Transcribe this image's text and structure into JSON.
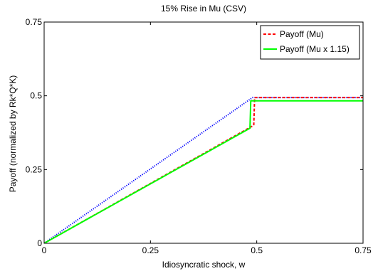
{
  "chart_data": {
    "type": "line",
    "title": "15% Rise in Mu (CSV)",
    "xlabel": "Idiosyncratic shock, w",
    "ylabel": "Payoff (normalized by Rk*Q*K)",
    "xlim": [
      0,
      0.75
    ],
    "ylim": [
      0,
      0.75
    ],
    "x_ticks": [
      0,
      0.25,
      0.5,
      0.75
    ],
    "x_tick_labels": [
      "0",
      "0.25",
      "0.5",
      "0.75"
    ],
    "y_ticks": [
      0,
      0.25,
      0.5,
      0.75
    ],
    "y_tick_labels": [
      "0",
      "0.25",
      "0.5",
      "0.75"
    ],
    "grid": false,
    "legend_position": "top-right",
    "series": [
      {
        "name": "",
        "color": "#0000ff",
        "dash": "dotted",
        "x": [
          0,
          0.49,
          0.75
        ],
        "y": [
          0,
          0.494,
          0.494
        ]
      },
      {
        "name": "Payoff (Mu)",
        "color": "#ff0000",
        "dash": "dashed",
        "x": [
          0,
          0.493,
          0.495,
          0.75
        ],
        "y": [
          0,
          0.4,
          0.494,
          0.494
        ]
      },
      {
        "name": "Payoff (Mu x 1.15)",
        "color": "#00ff00",
        "dash": "solid",
        "x": [
          0,
          0.484,
          0.486,
          0.75
        ],
        "y": [
          0,
          0.39,
          0.483,
          0.483
        ]
      }
    ]
  }
}
